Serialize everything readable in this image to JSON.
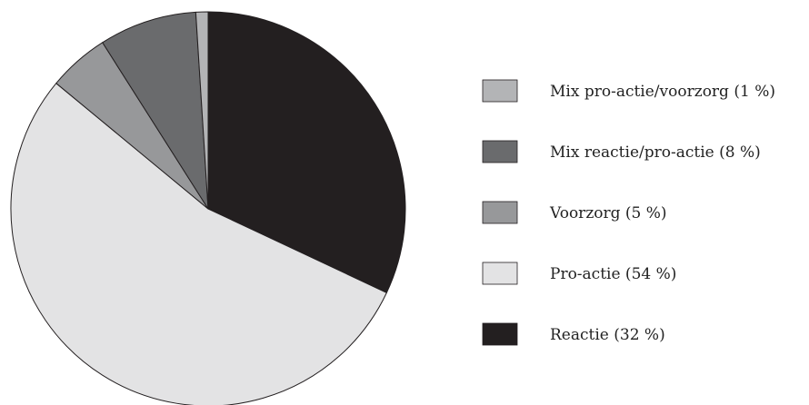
{
  "chart_data": {
    "type": "pie",
    "slices": [
      {
        "label": "Reactie (32 %)",
        "value": 32,
        "color": "#231f20"
      },
      {
        "label": "Pro-actie (54 %)",
        "value": 54,
        "color": "#e3e3e4"
      },
      {
        "label": "Voorzorg (5 %)",
        "value": 5,
        "color": "#97989a"
      },
      {
        "label": "Mix reactie/pro-actie (8 %)",
        "value": 8,
        "color": "#6a6b6d"
      },
      {
        "label": "Mix pro-actie/voorzorg (1 %)",
        "value": 1,
        "color": "#b3b4b6"
      }
    ],
    "legend": {
      "position": "right",
      "entries": [
        {
          "label": "Mix pro-actie/voorzorg (1 %)",
          "color": "#b3b4b6"
        },
        {
          "label": "Mix reactie/pro-actie (8 %)",
          "color": "#6a6b6d"
        },
        {
          "label": "Voorzorg (5 %)",
          "color": "#97989a"
        },
        {
          "label": "Pro-actie (54 %)",
          "color": "#e3e3e4"
        },
        {
          "label": "Reactie (32 %)",
          "color": "#231f20"
        }
      ]
    },
    "start_angle": "12 o'clock",
    "direction": "clockwise"
  }
}
